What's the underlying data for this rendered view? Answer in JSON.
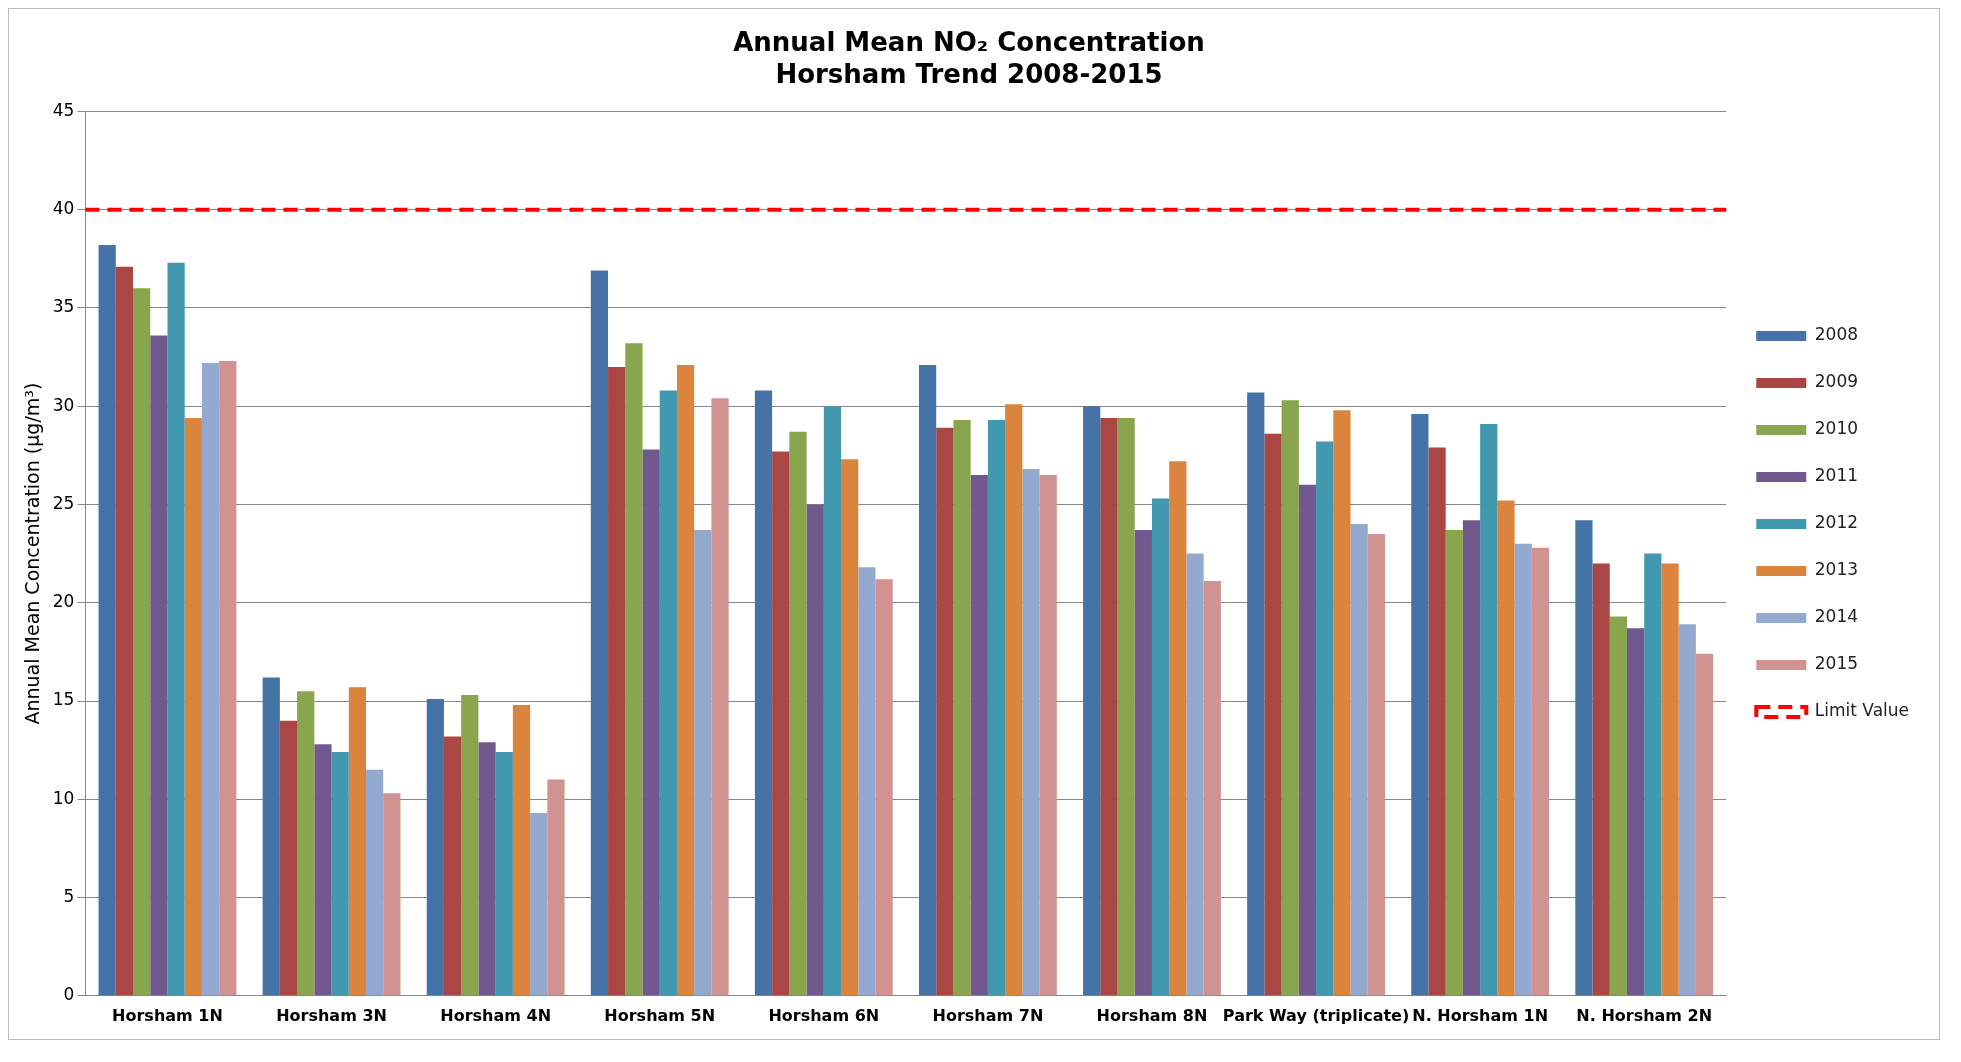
{
  "chart_data": {
    "type": "bar",
    "title": "Annual Mean NO₂ Concentration",
    "subtitle": "Horsham Trend 2008-2015",
    "ylabel": "Annual Mean Concentration (µg/m³)",
    "categories": [
      "Horsham 1N",
      "Horsham 3N",
      "Horsham 4N",
      "Horsham 5N",
      "Horsham 6N",
      "Horsham 7N",
      "Horsham 8N",
      "Park Way (triplicate)",
      "N. Horsham 1N",
      "N. Horsham 2N"
    ],
    "series": [
      {
        "name": "2008",
        "color": "#4572a7",
        "values": [
          38.2,
          16.2,
          15.1,
          36.9,
          30.8,
          32.1,
          30.0,
          30.7,
          29.6,
          24.2
        ]
      },
      {
        "name": "2009",
        "color": "#aa4643",
        "values": [
          37.1,
          14.0,
          13.2,
          32.0,
          27.7,
          28.9,
          29.4,
          28.6,
          27.9,
          22.0
        ]
      },
      {
        "name": "2010",
        "color": "#89a54e",
        "values": [
          36.0,
          15.5,
          15.3,
          33.2,
          28.7,
          29.3,
          29.4,
          30.3,
          23.7,
          19.3
        ]
      },
      {
        "name": "2011",
        "color": "#71588f",
        "values": [
          33.6,
          12.8,
          12.9,
          27.8,
          25.0,
          26.5,
          23.7,
          26.0,
          24.2,
          18.7
        ]
      },
      {
        "name": "2012",
        "color": "#4198af",
        "values": [
          37.3,
          12.4,
          12.4,
          30.8,
          30.0,
          29.3,
          25.3,
          28.2,
          29.1,
          22.5
        ]
      },
      {
        "name": "2013",
        "color": "#db843d",
        "values": [
          29.4,
          15.7,
          14.8,
          32.1,
          27.3,
          30.1,
          27.2,
          29.8,
          25.2,
          22.0
        ]
      },
      {
        "name": "2014",
        "color": "#93a9cf",
        "values": [
          32.2,
          11.5,
          9.3,
          23.7,
          21.8,
          26.8,
          22.5,
          24.0,
          23.0,
          18.9
        ]
      },
      {
        "name": "2015",
        "color": "#d19392",
        "values": [
          32.3,
          10.3,
          11.0,
          30.4,
          21.2,
          26.5,
          21.1,
          23.5,
          22.8,
          17.4
        ]
      }
    ],
    "ref_lines": [
      {
        "axis": "y",
        "value": 40,
        "label": "Limit Value",
        "color": "#ff0000",
        "line_style": "dashed"
      }
    ],
    "ylim": [
      0,
      45
    ],
    "yticks": [
      0,
      5,
      10,
      15,
      20,
      25,
      30,
      35,
      40,
      45
    ],
    "grid": "y",
    "legend": "right"
  }
}
